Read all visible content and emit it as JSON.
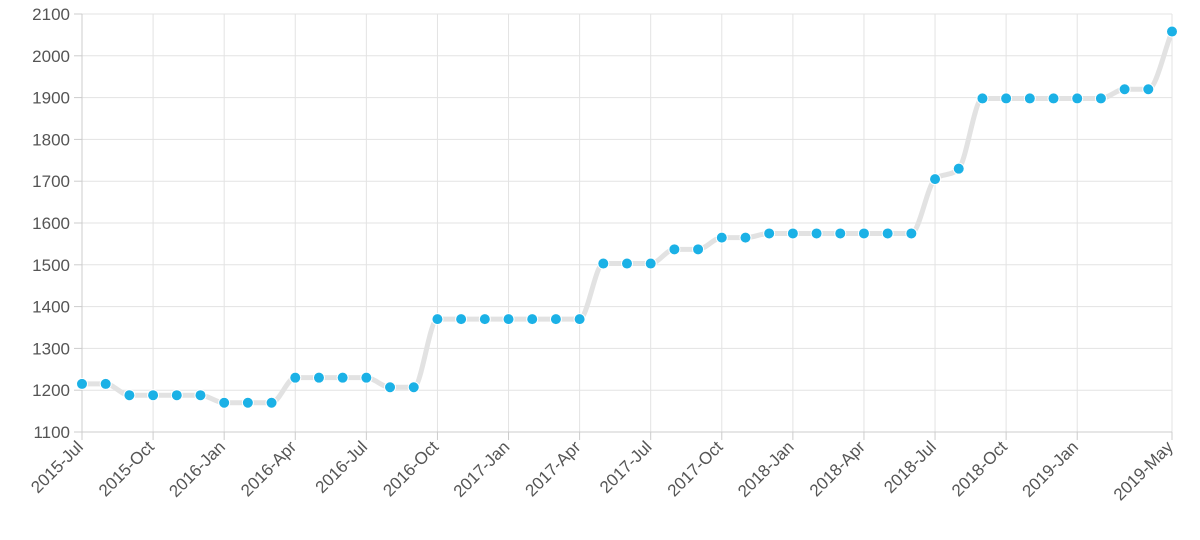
{
  "chart_data": {
    "type": "line",
    "title": "",
    "xlabel": "",
    "ylabel": "",
    "ylim": [
      1100,
      2100
    ],
    "y_ticks": [
      1100,
      1200,
      1300,
      1400,
      1500,
      1600,
      1700,
      1800,
      1900,
      2000,
      2100
    ],
    "x_tick_labels": [
      "2015-Jul",
      "2015-Oct",
      "2016-Jan",
      "2016-Apr",
      "2016-Jul",
      "2016-Oct",
      "2017-Jan",
      "2017-Apr",
      "2017-Jul",
      "2017-Oct",
      "2018-Jan",
      "2018-Apr",
      "2018-Jul",
      "2018-Oct",
      "2019-Jan",
      "2019-May"
    ],
    "x_tick_index": [
      0,
      3,
      6,
      9,
      12,
      15,
      18,
      21,
      24,
      27,
      30,
      33,
      36,
      39,
      42,
      46
    ],
    "grid": true,
    "legend": "none",
    "line_color": "#e2e2e2",
    "point_color": "#1bb1e6",
    "series": [
      {
        "values": [
          1215,
          1215,
          1188,
          1188,
          1188,
          1188,
          1170,
          1170,
          1170,
          1230,
          1230,
          1230,
          1230,
          1207,
          1207,
          1370,
          1370,
          1370,
          1370,
          1370,
          1370,
          1370,
          1503,
          1503,
          1503,
          1537,
          1537,
          1565,
          1565,
          1575,
          1575,
          1575,
          1575,
          1575,
          1575,
          1575,
          1705,
          1730,
          1898,
          1898,
          1898,
          1898,
          1898,
          1898,
          1920,
          1920,
          2058
        ]
      }
    ]
  }
}
